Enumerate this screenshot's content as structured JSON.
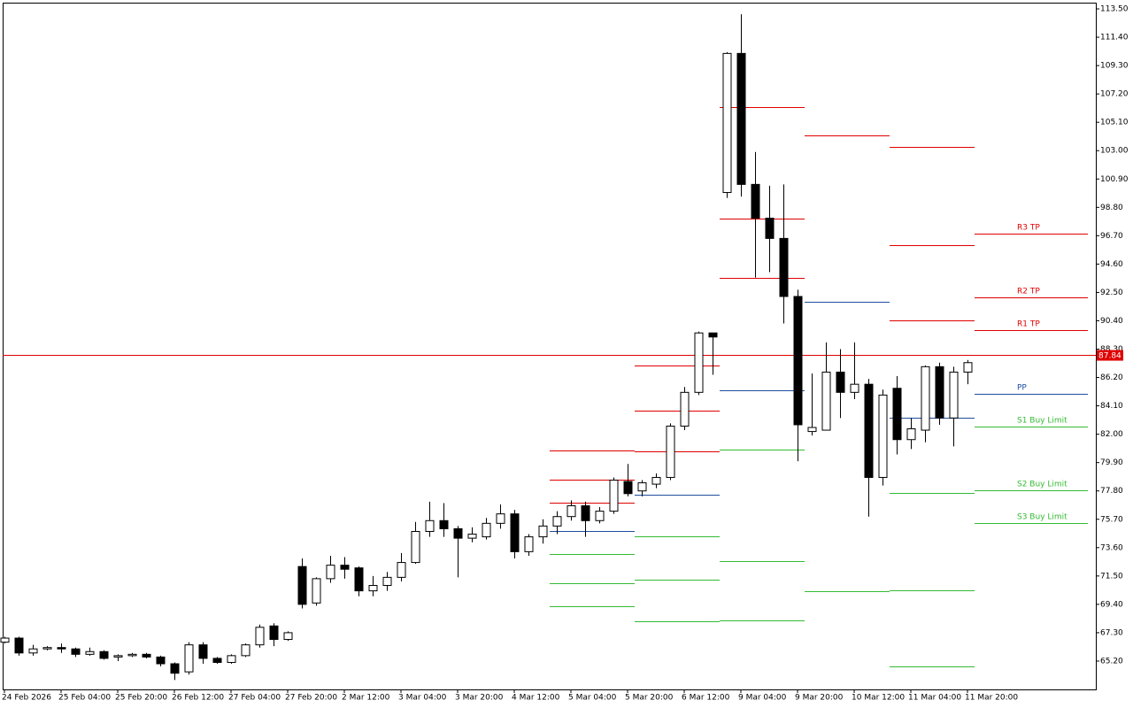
{
  "chart_data": {
    "type": "candlestick",
    "categories": [
      "24 Feb 2026",
      null,
      null,
      null,
      "25 Feb 04:00",
      null,
      null,
      null,
      "25 Feb 20:00",
      null,
      null,
      null,
      "26 Feb 12:00",
      null,
      null,
      null,
      "27 Feb 04:00",
      null,
      null,
      null,
      "27 Feb 20:00",
      null,
      null,
      null,
      "2 Mar 12:00",
      null,
      null,
      null,
      "3 Mar 04:00",
      null,
      null,
      null,
      "3 Mar 20:00",
      null,
      null,
      null,
      "4 Mar 12:00",
      null,
      null,
      null,
      "5 Mar 04:00",
      null,
      null,
      null,
      "5 Mar 20:00",
      null,
      null,
      null,
      "6 Mar 12:00",
      null,
      null,
      null,
      "9 Mar 04:00",
      null,
      null,
      null,
      "9 Mar 20:00",
      null,
      null,
      null,
      "10 Mar 12:00",
      null,
      null,
      null,
      "11 Mar 04:00",
      null,
      null,
      null,
      "11 Mar 20:00",
      null,
      null,
      null,
      null,
      null,
      null,
      null,
      null
    ],
    "ohlc": {
      "open": [
        66.6,
        66.9,
        65.8,
        66.1,
        66.2,
        66.1,
        65.7,
        65.9,
        65.5,
        65.6,
        65.7,
        65.5,
        65.0,
        64.4,
        66.4,
        65.4,
        65.1,
        65.6,
        66.4,
        67.8,
        66.8,
        72.2,
        69.5,
        71.3,
        72.3,
        72.1,
        70.4,
        70.8,
        71.4,
        72.5,
        74.8,
        75.6,
        75.0,
        74.3,
        74.4,
        75.4,
        76.1,
        73.3,
        74.4,
        75.2,
        75.9,
        76.7,
        75.6,
        76.3,
        78.5,
        77.8,
        78.3,
        78.8,
        82.6,
        85.1,
        89.5,
        99.9,
        110.2,
        100.5,
        98.0,
        96.5,
        92.2,
        82.2,
        82.3,
        86.6,
        85.1,
        85.7,
        78.8,
        85.4,
        81.6,
        82.3,
        87.0,
        83.2,
        86.6,
        null,
        null,
        null,
        null,
        null,
        null,
        null,
        null
      ],
      "high": [
        67.0,
        67.0,
        66.4,
        66.3,
        66.5,
        66.2,
        66.2,
        66.0,
        65.7,
        65.8,
        65.8,
        65.6,
        65.1,
        66.6,
        66.6,
        65.5,
        65.7,
        66.5,
        67.9,
        68.0,
        67.4,
        72.8,
        71.4,
        73.0,
        72.9,
        72.2,
        71.5,
        71.8,
        73.2,
        75.5,
        77.0,
        76.9,
        75.2,
        75.1,
        75.8,
        76.8,
        76.4,
        74.6,
        75.7,
        76.3,
        77.1,
        77.0,
        76.6,
        78.8,
        79.8,
        78.6,
        79.1,
        82.8,
        85.5,
        89.6,
        89.5,
        110.3,
        113.1,
        102.9,
        100.4,
        100.5,
        92.7,
        86.5,
        88.8,
        88.3,
        88.8,
        86.1,
        85.3,
        86.3,
        83.2,
        87.1,
        87.3,
        87.0,
        87.5,
        null,
        null,
        null,
        null,
        null,
        null,
        null,
        null
      ],
      "low": [
        66.5,
        65.6,
        65.6,
        66.0,
        65.8,
        65.5,
        65.6,
        65.3,
        65.2,
        65.5,
        65.4,
        64.8,
        63.8,
        64.2,
        65.0,
        65.0,
        65.0,
        65.5,
        66.2,
        66.3,
        66.7,
        69.1,
        69.3,
        71.0,
        71.3,
        70.0,
        70.0,
        70.4,
        71.1,
        72.4,
        74.4,
        74.4,
        71.4,
        74.0,
        74.2,
        75.0,
        72.8,
        73.0,
        73.9,
        74.6,
        75.6,
        74.4,
        75.4,
        76.1,
        77.4,
        77.4,
        78.0,
        78.6,
        82.3,
        84.9,
        86.4,
        99.5,
        99.6,
        93.6,
        94.0,
        90.2,
        80.0,
        81.9,
        82.3,
        83.2,
        84.6,
        75.9,
        78.2,
        80.5,
        80.9,
        81.4,
        82.7,
        81.1,
        85.7,
        null,
        null,
        null,
        null,
        null,
        null,
        null,
        null
      ],
      "close": [
        66.9,
        65.8,
        66.1,
        66.2,
        66.1,
        65.7,
        65.9,
        65.4,
        65.6,
        65.7,
        65.5,
        65.0,
        64.3,
        66.4,
        65.4,
        65.1,
        65.6,
        66.4,
        67.7,
        66.8,
        67.3,
        69.4,
        71.3,
        72.3,
        72.0,
        70.4,
        70.8,
        71.4,
        72.5,
        74.8,
        75.6,
        75.0,
        74.3,
        74.6,
        75.4,
        76.1,
        73.3,
        74.4,
        75.2,
        75.9,
        76.7,
        75.6,
        76.3,
        78.6,
        77.6,
        78.4,
        78.8,
        82.6,
        85.1,
        89.5,
        89.2,
        110.2,
        100.5,
        98.0,
        96.5,
        92.2,
        82.7,
        82.5,
        86.6,
        85.1,
        85.7,
        78.8,
        84.9,
        81.6,
        82.4,
        87.0,
        83.2,
        86.6,
        87.3,
        null,
        null,
        null,
        null,
        null,
        null,
        null,
        null
      ]
    },
    "up_color": "#ffffff",
    "down_color": "#000000",
    "wick_color": "#000000",
    "series": [
      {
        "name": "R3 TP",
        "color": "#e00000",
        "values": [
          null,
          null,
          null,
          null,
          null,
          null,
          null,
          null,
          null,
          null,
          null,
          null,
          null,
          null,
          null,
          null,
          null,
          null,
          null,
          null,
          null,
          null,
          null,
          null,
          null,
          null,
          null,
          null,
          null,
          null,
          null,
          null,
          null,
          null,
          null,
          null,
          null,
          null,
          null,
          80.79,
          80.79,
          80.79,
          80.79,
          80.79,
          80.79,
          87.09,
          87.09,
          87.09,
          87.09,
          87.09,
          87.09,
          106.22,
          106.22,
          106.22,
          106.22,
          106.22,
          106.22,
          null,
          null,
          null,
          null,
          null,
          null,
          103.28,
          103.28,
          103.28,
          103.28,
          103.28,
          103.28,
          96.85,
          96.85,
          96.85,
          96.85,
          96.85,
          96.85,
          96.85,
          96.85
        ]
      },
      {
        "name": "R2 TP",
        "color": "#e00000",
        "values": [
          null,
          null,
          null,
          null,
          null,
          null,
          null,
          null,
          null,
          null,
          null,
          null,
          null,
          null,
          null,
          null,
          null,
          null,
          null,
          null,
          null,
          null,
          null,
          null,
          null,
          null,
          null,
          null,
          null,
          null,
          null,
          null,
          null,
          null,
          null,
          null,
          null,
          null,
          null,
          78.63,
          78.63,
          78.63,
          78.63,
          78.63,
          78.63,
          83.74,
          83.74,
          83.74,
          83.74,
          83.74,
          83.74,
          97.97,
          97.97,
          97.97,
          97.97,
          97.97,
          97.97,
          null,
          null,
          null,
          null,
          null,
          null,
          96.0,
          96.0,
          96.0,
          96.0,
          96.0,
          96.0,
          92.13,
          92.13,
          92.13,
          92.13,
          92.13,
          92.13,
          92.13,
          92.13
        ]
      },
      {
        "name": "R1 TP",
        "color": "#e00000",
        "values": [
          null,
          null,
          null,
          null,
          null,
          null,
          null,
          null,
          null,
          null,
          null,
          null,
          null,
          null,
          null,
          null,
          null,
          null,
          null,
          null,
          null,
          null,
          null,
          null,
          null,
          null,
          null,
          null,
          null,
          null,
          null,
          null,
          null,
          null,
          null,
          null,
          null,
          null,
          null,
          76.93,
          76.93,
          76.93,
          76.93,
          76.93,
          76.93,
          80.73,
          80.73,
          80.73,
          80.73,
          80.73,
          80.73,
          93.58,
          93.58,
          93.58,
          93.58,
          93.58,
          93.58,
          104.13,
          104.13,
          104.13,
          104.13,
          104.13,
          104.13,
          90.43,
          90.43,
          90.43,
          90.43,
          90.43,
          90.43,
          89.71,
          89.71,
          89.71,
          89.71,
          89.71,
          89.71,
          89.71,
          89.71
        ]
      },
      {
        "name": "PP",
        "color": "#1f4e9e",
        "values": [
          null,
          null,
          null,
          null,
          null,
          null,
          null,
          null,
          null,
          null,
          null,
          null,
          null,
          null,
          null,
          null,
          null,
          null,
          null,
          null,
          null,
          null,
          null,
          null,
          null,
          null,
          null,
          null,
          null,
          null,
          null,
          null,
          null,
          null,
          null,
          null,
          null,
          null,
          null,
          74.83,
          74.83,
          74.83,
          74.83,
          74.83,
          74.83,
          77.52,
          77.52,
          77.52,
          77.52,
          77.52,
          77.52,
          85.25,
          85.25,
          85.25,
          85.25,
          85.25,
          85.25,
          91.8,
          91.8,
          91.8,
          91.8,
          91.8,
          91.8,
          83.22,
          83.22,
          83.22,
          83.22,
          83.22,
          83.22,
          85.0,
          85.0,
          85.0,
          85.0,
          85.0,
          85.0,
          85.0,
          85.0
        ]
      },
      {
        "name": "S1 Buy Limit",
        "color": "#33bb33",
        "values": [
          null,
          null,
          null,
          null,
          null,
          null,
          null,
          null,
          null,
          null,
          null,
          null,
          null,
          null,
          null,
          null,
          null,
          null,
          null,
          null,
          null,
          null,
          null,
          null,
          null,
          null,
          null,
          null,
          null,
          null,
          null,
          null,
          null,
          null,
          null,
          null,
          null,
          null,
          null,
          73.12,
          73.12,
          73.12,
          73.12,
          73.12,
          73.12,
          74.44,
          74.44,
          74.44,
          74.44,
          74.44,
          74.44,
          80.86,
          80.86,
          80.86,
          80.86,
          80.86,
          80.86,
          70.37,
          70.37,
          70.37,
          70.37,
          70.37,
          70.37,
          77.65,
          77.65,
          77.65,
          77.65,
          77.65,
          77.65,
          82.56,
          82.56,
          82.56,
          82.56,
          82.56,
          82.56,
          82.56,
          82.56
        ]
      },
      {
        "name": "S2 Buy Limit",
        "color": "#33bb33",
        "values": [
          null,
          null,
          null,
          null,
          null,
          null,
          null,
          null,
          null,
          null,
          null,
          null,
          null,
          null,
          null,
          null,
          null,
          null,
          null,
          null,
          null,
          null,
          null,
          null,
          null,
          null,
          null,
          null,
          null,
          null,
          null,
          null,
          null,
          null,
          null,
          null,
          null,
          null,
          null,
          70.96,
          70.96,
          70.96,
          70.96,
          70.96,
          70.96,
          71.23,
          71.23,
          71.23,
          71.23,
          71.23,
          71.23,
          72.6,
          72.6,
          72.6,
          72.6,
          72.6,
          72.6,
          null,
          null,
          null,
          null,
          null,
          null,
          70.44,
          70.44,
          70.44,
          70.44,
          70.44,
          70.44,
          77.84,
          77.84,
          77.84,
          77.84,
          77.84,
          77.84,
          77.84,
          77.84
        ]
      },
      {
        "name": "S3 Buy Limit",
        "color": "#33bb33",
        "values": [
          null,
          null,
          null,
          null,
          null,
          null,
          null,
          null,
          null,
          null,
          null,
          null,
          null,
          null,
          null,
          null,
          null,
          null,
          null,
          null,
          null,
          null,
          null,
          null,
          null,
          null,
          null,
          null,
          null,
          null,
          null,
          null,
          null,
          null,
          null,
          null,
          null,
          null,
          null,
          69.26,
          69.26,
          69.26,
          69.26,
          69.26,
          69.26,
          68.14,
          68.14,
          68.14,
          68.14,
          68.14,
          68.14,
          68.21,
          68.21,
          68.21,
          68.21,
          68.21,
          68.21,
          null,
          null,
          null,
          null,
          null,
          null,
          64.8,
          64.8,
          64.8,
          64.8,
          64.8,
          64.8,
          75.42,
          75.42,
          75.42,
          75.42,
          75.42,
          75.42,
          75.42,
          75.42
        ]
      }
    ],
    "last_price": 87.84,
    "last_price_color": "#e00000",
    "ylim": [
      63.1,
      113.96
    ],
    "yticks": [
      {
        "value": 113.5,
        "label": "113.50"
      },
      {
        "value": 111.4,
        "label": "111.40"
      },
      {
        "value": 109.3,
        "label": "109.30"
      },
      {
        "value": 107.2,
        "label": "107.20"
      },
      {
        "value": 105.1,
        "label": "105.10"
      },
      {
        "value": 103.0,
        "label": "103.00"
      },
      {
        "value": 100.9,
        "label": "100.90"
      },
      {
        "value": 98.8,
        "label": "98.80"
      },
      {
        "value": 96.7,
        "label": "96.70"
      },
      {
        "value": 94.6,
        "label": "94.60"
      },
      {
        "value": 92.5,
        "label": "92.50"
      },
      {
        "value": 90.4,
        "label": "90.40"
      },
      {
        "value": 88.3,
        "label": "88.30"
      },
      {
        "value": 86.2,
        "label": "86.20"
      },
      {
        "value": 84.1,
        "label": "84.10"
      },
      {
        "value": 82.0,
        "label": "82.00"
      },
      {
        "value": 79.9,
        "label": "79.90"
      },
      {
        "value": 77.8,
        "label": "77.80"
      },
      {
        "value": 75.7,
        "label": "75.70"
      },
      {
        "value": 73.6,
        "label": "73.60"
      },
      {
        "value": 71.5,
        "label": "71.50"
      },
      {
        "value": 69.4,
        "label": "69.40"
      },
      {
        "value": 67.3,
        "label": "67.30"
      },
      {
        "value": 65.2,
        "label": "65.20"
      }
    ]
  }
}
